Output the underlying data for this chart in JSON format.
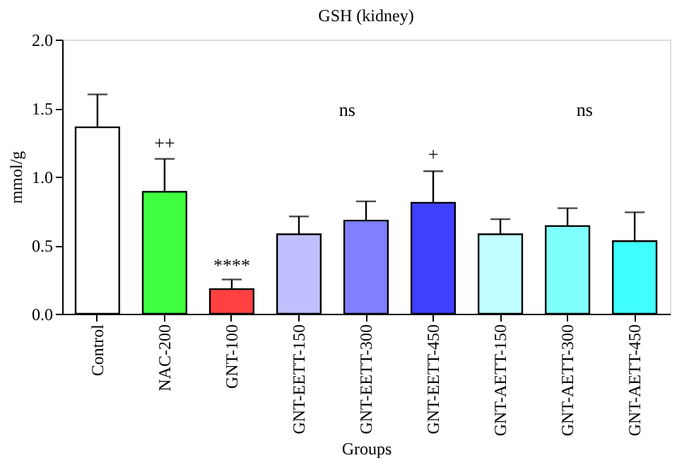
{
  "chart_data": {
    "type": "bar",
    "title": "GSH (kidney)",
    "xlabel": "Groups",
    "ylabel": "mmol/g",
    "categories": [
      "Control",
      "NAC-200",
      "GNT-100",
      "GNT-EETT-150",
      "GNT-EETT-300",
      "GNT-EETT-450",
      "GNT-AETT-150",
      "GNT-AETT-300",
      "GNT-AETT-450"
    ],
    "values": [
      1.36,
      0.89,
      0.18,
      0.58,
      0.68,
      0.81,
      0.58,
      0.64,
      0.53
    ],
    "errors": [
      0.24,
      0.24,
      0.07,
      0.13,
      0.14,
      0.23,
      0.11,
      0.13,
      0.21
    ],
    "colors": [
      "#ffffff",
      "#40ff40",
      "#ff4040",
      "#c0c0ff",
      "#8080ff",
      "#4040ff",
      "#c0ffff",
      "#80ffff",
      "#40ffff"
    ],
    "ylim": [
      0,
      2
    ],
    "yticks": [
      {
        "value": 0,
        "label": "0.0"
      },
      {
        "value": 0.5,
        "label": "0.5"
      },
      {
        "value": 1,
        "label": "1.0"
      },
      {
        "value": 1.5,
        "label": "1.5"
      },
      {
        "value": 2,
        "label": "2.0"
      }
    ],
    "grid": false,
    "annotations": [
      {
        "text": "++",
        "x": "NAC-200",
        "y": 1.17
      },
      {
        "text": "****",
        "x": "GNT-100",
        "y": 0.28
      },
      "ns",
      {
        "text": "+",
        "x": "GNT-EETT-450",
        "y": 1.09
      },
      "ns"
    ]
  }
}
